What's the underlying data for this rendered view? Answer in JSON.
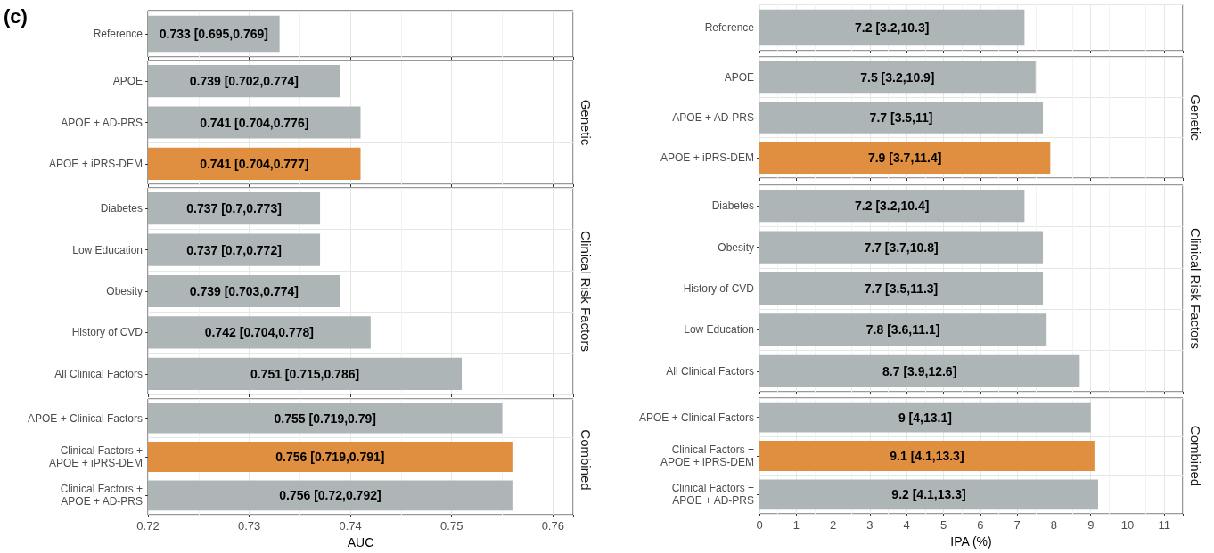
{
  "chart_data": [
    {
      "type": "bar",
      "orientation": "horizontal",
      "annotations": [
        "(c)"
      ],
      "categories": [
        "Reference"
      ],
      "values": [
        0.733
      ],
      "colors": [
        "#adb5b7"
      ],
      "value_labels": [
        "0.733 [0.695,0.769]"
      ],
      "xlim": [
        0.72,
        0.762
      ],
      "xticks": [
        0.72,
        0.73,
        0.74,
        0.75,
        0.76
      ],
      "grid": true,
      "tick_labels": "y"
    },
    {
      "type": "bar",
      "orientation": "horizontal",
      "title": "Genetic",
      "categories": [
        "APOE",
        "APOE + AD-PRS",
        "APOE + iPRS-DEM"
      ],
      "values": [
        0.739,
        0.741,
        0.741
      ],
      "colors": [
        "#adb5b7",
        "#adb5b7",
        "#e08e3f"
      ],
      "value_labels": [
        "0.739 [0.702,0.774]",
        "0.741 [0.704,0.776]",
        "0.741 [0.704,0.777]"
      ],
      "xlim": [
        0.72,
        0.762
      ],
      "xticks": [
        0.72,
        0.73,
        0.74,
        0.75,
        0.76
      ],
      "grid": true,
      "tick_labels": "y"
    },
    {
      "type": "bar",
      "orientation": "horizontal",
      "title": "Clinical Risk Factors",
      "categories": [
        "Diabetes",
        "Low Education",
        "Obesity",
        "History of CVD",
        "All Clinical Factors"
      ],
      "values": [
        0.737,
        0.737,
        0.739,
        0.742,
        0.751
      ],
      "colors": [
        "#adb5b7",
        "#adb5b7",
        "#adb5b7",
        "#adb5b7",
        "#adb5b7"
      ],
      "value_labels": [
        "0.737 [0.7,0.773]",
        "0.737 [0.7,0.772]",
        "0.739 [0.703,0.774]",
        "0.742 [0.704,0.778]",
        "0.751 [0.715,0.786]"
      ],
      "xlim": [
        0.72,
        0.762
      ],
      "xticks": [
        0.72,
        0.73,
        0.74,
        0.75,
        0.76
      ],
      "grid": true,
      "tick_labels": "y"
    },
    {
      "type": "bar",
      "orientation": "horizontal",
      "title": "Combined",
      "xlabel": "AUC",
      "categories": [
        "APOE + Clinical Factors",
        "Clinical Factors +\nAPOE + iPRS-DEM",
        "Clinical Factors +\nAPOE + AD-PRS"
      ],
      "values": [
        0.755,
        0.756,
        0.756
      ],
      "colors": [
        "#adb5b7",
        "#e08e3f",
        "#adb5b7"
      ],
      "value_labels": [
        "0.755 [0.719,0.79]",
        "0.756 [0.719,0.791]",
        "0.756 [0.72,0.792]"
      ],
      "xlim": [
        0.72,
        0.762
      ],
      "xticks": [
        0.72,
        0.73,
        0.74,
        0.75,
        0.76
      ],
      "grid": true
    },
    {
      "type": "bar",
      "orientation": "horizontal",
      "categories": [
        "Reference"
      ],
      "values": [
        7.2
      ],
      "colors": [
        "#adb5b7"
      ],
      "value_labels": [
        "7.2 [3.2,10.3]"
      ],
      "xlim": [
        0,
        11.5
      ],
      "xticks": [
        0,
        1,
        2,
        3,
        4,
        5,
        6,
        7,
        8,
        9,
        10,
        11
      ],
      "grid": true,
      "tick_labels": "y"
    },
    {
      "type": "bar",
      "orientation": "horizontal",
      "title": "Genetic",
      "categories": [
        "APOE",
        "APOE + AD-PRS",
        "APOE + iPRS-DEM"
      ],
      "values": [
        7.5,
        7.7,
        7.9
      ],
      "colors": [
        "#adb5b7",
        "#adb5b7",
        "#e08e3f"
      ],
      "value_labels": [
        "7.5 [3.2,10.9]",
        "7.7 [3.5,11]",
        "7.9 [3.7,11.4]"
      ],
      "xlim": [
        0,
        11.5
      ],
      "xticks": [
        0,
        1,
        2,
        3,
        4,
        5,
        6,
        7,
        8,
        9,
        10,
        11
      ],
      "grid": true,
      "tick_labels": "y"
    },
    {
      "type": "bar",
      "orientation": "horizontal",
      "title": "Clinical Risk Factors",
      "categories": [
        "Diabetes",
        "Obesity",
        "History of CVD",
        "Low Education",
        "All Clinical Factors"
      ],
      "values": [
        7.2,
        7.7,
        7.7,
        7.8,
        8.7
      ],
      "colors": [
        "#adb5b7",
        "#adb5b7",
        "#adb5b7",
        "#adb5b7",
        "#adb5b7"
      ],
      "value_labels": [
        "7.2 [3.2,10.4]",
        "7.7 [3.7,10.8]",
        "7.7 [3.5,11.3]",
        "7.8 [3.6,11.1]",
        "8.7 [3.9,12.6]"
      ],
      "xlim": [
        0,
        11.5
      ],
      "xticks": [
        0,
        1,
        2,
        3,
        4,
        5,
        6,
        7,
        8,
        9,
        10,
        11
      ],
      "grid": true,
      "tick_labels": "y"
    },
    {
      "type": "bar",
      "orientation": "horizontal",
      "title": "Combined",
      "xlabel": "IPA (%)",
      "categories": [
        "APOE + Clinical Factors",
        "Clinical Factors +\nAPOE + iPRS-DEM",
        "Clinical Factors +\nAPOE + AD-PRS"
      ],
      "values": [
        9,
        9.1,
        9.2
      ],
      "colors": [
        "#adb5b7",
        "#e08e3f",
        "#adb5b7"
      ],
      "value_labels": [
        "9 [4,13.1]",
        "9.1 [4.1,13.3]",
        "9.2 [4.1,13.3]"
      ],
      "xlim": [
        0,
        11.5
      ],
      "xticks": [
        0,
        1,
        2,
        3,
        4,
        5,
        6,
        7,
        8,
        9,
        10,
        11
      ],
      "grid": true
    }
  ]
}
